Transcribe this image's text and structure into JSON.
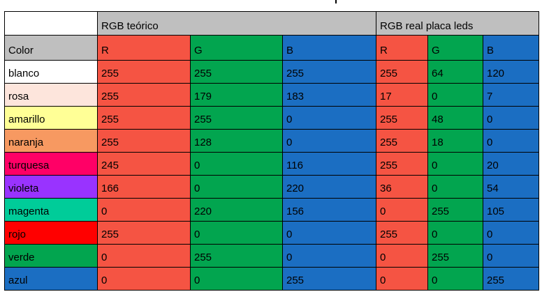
{
  "header": {
    "theoretical": "RGB teórico",
    "real": "RGB real placa leds",
    "color_col": "Color",
    "cols_theoretical": [
      "R",
      "G",
      "B"
    ],
    "cols_real": [
      "R",
      "G",
      "B"
    ]
  },
  "rows": [
    {
      "name": "blanco",
      "swatch": "#ffffff",
      "t": [
        "255",
        "255",
        "255"
      ],
      "r": [
        "255",
        "64",
        "120"
      ]
    },
    {
      "name": "rosa",
      "swatch": "#fde5dc",
      "t": [
        "255",
        "179",
        "183"
      ],
      "r": [
        "17",
        "0",
        "7"
      ]
    },
    {
      "name": "amarillo",
      "swatch": "#ffff96",
      "t": [
        "255",
        "255",
        "0"
      ],
      "r": [
        "255",
        "48",
        "0"
      ]
    },
    {
      "name": "naranja",
      "swatch": "#f79961",
      "t": [
        "255",
        "128",
        "0"
      ],
      "r": [
        "255",
        "18",
        "0"
      ]
    },
    {
      "name": "turquesa",
      "swatch": "#ff0066",
      "t": [
        "245",
        "0",
        "116"
      ],
      "r": [
        "255",
        "0",
        "20"
      ]
    },
    {
      "name": "violeta",
      "swatch": "#9933ff",
      "t": [
        "166",
        "0",
        "220"
      ],
      "r": [
        "36",
        "0",
        "54"
      ]
    },
    {
      "name": "magenta",
      "swatch": "#00cc99",
      "t": [
        "0",
        "220",
        "156"
      ],
      "r": [
        "0",
        "255",
        "105"
      ]
    },
    {
      "name": "rojo",
      "swatch": "#ff0000",
      "t": [
        "255",
        "0",
        "0"
      ],
      "r": [
        "255",
        "0",
        "0"
      ]
    },
    {
      "name": "verde",
      "swatch": "#02a54f",
      "t": [
        "0",
        "255",
        "0"
      ],
      "r": [
        "0",
        "255",
        "0"
      ]
    },
    {
      "name": "azul",
      "swatch": "#1b6ec2",
      "t": [
        "0",
        "0",
        "255"
      ],
      "r": [
        "0",
        "0",
        "255"
      ]
    }
  ],
  "colors": {
    "r_col": "#f55443",
    "g_col": "#02a54f",
    "b_col": "#1b6ec2",
    "header_gray": "#bfbfbf"
  }
}
